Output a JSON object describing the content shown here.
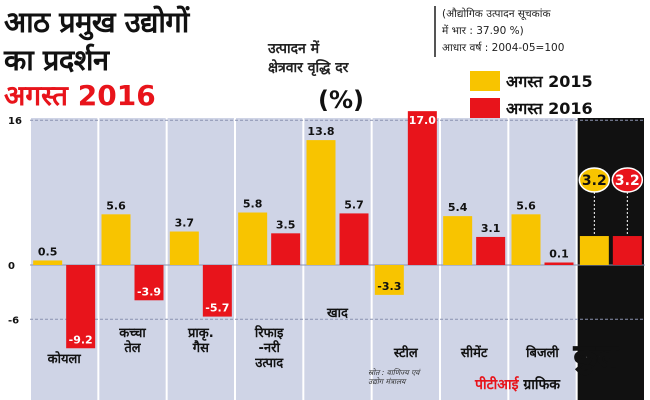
{
  "title": {
    "line1": "आठ प्रमुख उद्योगों",
    "line2": "का प्रदर्शन",
    "date": "अगस्त 2016"
  },
  "subtitle": {
    "line1": "उत्पादन में",
    "line2": "क्षेत्रवार वृद्धि दर",
    "unit": "(%)"
  },
  "note": {
    "line1": "(औद्योगिक उत्पादन सूचकांक",
    "line2": "में भार : 37.90 %)",
    "line3": "आधार वर्ष : 2004-05=100"
  },
  "source": {
    "line1": "स्रोत : वाणिज्य एवं",
    "line2": "उद्योग मंत्रालय"
  },
  "credit": {
    "pti": "पीटीआई",
    "graphic": "ग्राफिक"
  },
  "colors": {
    "aug2015": "#f8c400",
    "aug2016": "#e8141b",
    "panel": "#cfd4e6",
    "total_panel": "#111111"
  },
  "chart_data": {
    "type": "bar",
    "categories": [
      "कोयला",
      "कच्चा तेल",
      "प्राकृ. गैस",
      "रिफाइ -नरी उत्पाद",
      "खाद",
      "स्टील",
      "सीमेंट",
      "बिजली",
      "कुल"
    ],
    "category_lines": [
      [
        "कोयला"
      ],
      [
        "कच्चा",
        "तेल"
      ],
      [
        "प्राकृ.",
        "गैस"
      ],
      [
        "रिफाइ",
        "-नरी",
        "उत्पाद"
      ],
      [
        "खाद"
      ],
      [
        "स्टील"
      ],
      [
        "सीमेंट"
      ],
      [
        "बिजली"
      ],
      [
        "कुल"
      ]
    ],
    "series": [
      {
        "name": "अगस्त 2015",
        "values": [
          0.5,
          5.6,
          3.7,
          5.8,
          13.8,
          -3.3,
          5.4,
          5.6,
          3.2
        ],
        "labels": [
          "0.5",
          "5.6",
          "3.7",
          "5.8",
          "13.8",
          "-3.3",
          "5.4",
          "5.6",
          "3.2"
        ]
      },
      {
        "name": "अगस्त 2016",
        "values": [
          -9.2,
          -3.9,
          -5.7,
          3.5,
          5.7,
          17.0,
          3.1,
          0.1,
          3.2
        ],
        "labels": [
          "-9.2",
          "-3.9",
          "-5.7",
          "3.5",
          "5.7",
          "17.0",
          "3.1",
          "0.1",
          "3.2"
        ]
      }
    ],
    "yticks": [
      {
        "value": 16,
        "label": "16"
      },
      {
        "value": 0,
        "label": "0"
      },
      {
        "value": -6,
        "label": "-6"
      }
    ],
    "ylim": [
      -10,
      17.5
    ],
    "xlabel": "",
    "ylabel": "",
    "grid": true,
    "legend": "top-right"
  }
}
